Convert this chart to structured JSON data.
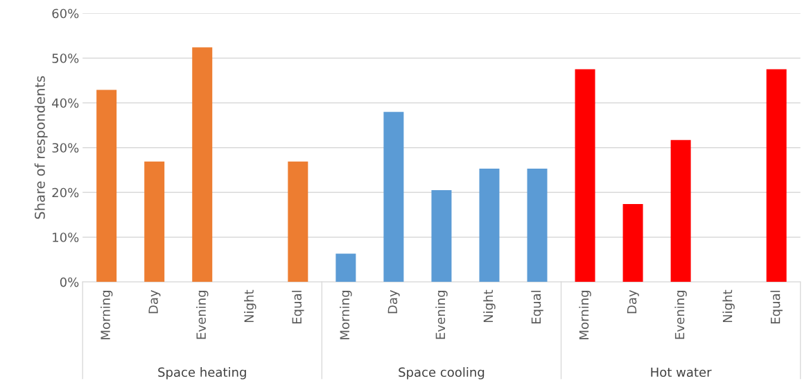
{
  "chart_data": {
    "type": "bar",
    "ylabel": "Share of respondents",
    "categories": [
      "Morning",
      "Day",
      "Evening",
      "Night",
      "Equal",
      "Morning",
      "Day",
      "Evening",
      "Night",
      "Equal",
      "Morning",
      "Day",
      "Evening",
      "Night",
      "Equal"
    ],
    "values": [
      42.9,
      26.9,
      52.4,
      0,
      26.9,
      6.3,
      38.0,
      20.5,
      25.3,
      25.3,
      47.5,
      17.4,
      31.7,
      0,
      47.5
    ],
    "colors": [
      "#ed7d31",
      "#ed7d31",
      "#ed7d31",
      "#ed7d31",
      "#ed7d31",
      "#5b9bd5",
      "#5b9bd5",
      "#5b9bd5",
      "#5b9bd5",
      "#5b9bd5",
      "#ff0000",
      "#ff0000",
      "#ff0000",
      "#ff0000",
      "#ff0000"
    ],
    "annotations": [
      "Space heating",
      "Space cooling",
      "Hot water"
    ],
    "ylim": [
      0,
      60
    ],
    "yticks": [
      {
        "value": 0,
        "label": "0%"
      },
      {
        "value": 10,
        "label": "10%"
      },
      {
        "value": 20,
        "label": "20%"
      },
      {
        "value": 30,
        "label": "30%"
      },
      {
        "value": 40,
        "label": "40%"
      },
      {
        "value": 50,
        "label": "50%"
      },
      {
        "value": 60,
        "label": "60%"
      }
    ],
    "grid": "y"
  }
}
